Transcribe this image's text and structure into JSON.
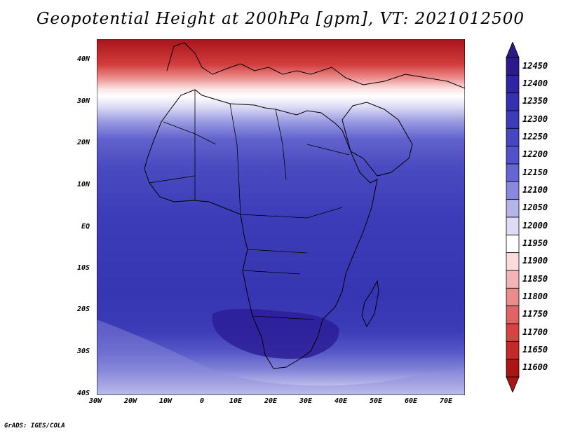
{
  "title": "Geopotential Height at 200hPa [gpm], VT: 2021012500",
  "credit": "GrADS: IGES/COLA",
  "map": {
    "lat_labels": [
      "40N",
      "30N",
      "20N",
      "10N",
      "EQ",
      "10S",
      "20S",
      "30S",
      "40S"
    ],
    "lon_labels": [
      "30W",
      "20W",
      "10W",
      "0",
      "10E",
      "20E",
      "30E",
      "40E",
      "50E",
      "60E",
      "70E"
    ],
    "lon_range": [
      -30,
      75
    ],
    "lat_range": [
      -40,
      45
    ]
  },
  "legend": {
    "levels": [
      "12450",
      "12400",
      "12350",
      "12300",
      "12250",
      "12200",
      "12150",
      "12100",
      "12050",
      "12000",
      "11950",
      "11900",
      "11850",
      "11800",
      "11750",
      "11700",
      "11650",
      "11600"
    ],
    "colors": [
      "#2a1a8c",
      "#2f24a3",
      "#3530b0",
      "#3c3cb8",
      "#4646c0",
      "#5252c8",
      "#6666d2",
      "#8888dc",
      "#b4b4ea",
      "#dcdcf4",
      "#ffffff",
      "#fadcdc",
      "#f2b4b4",
      "#ea8c8c",
      "#e06464",
      "#d84242",
      "#c42828",
      "#a81616"
    ]
  }
}
